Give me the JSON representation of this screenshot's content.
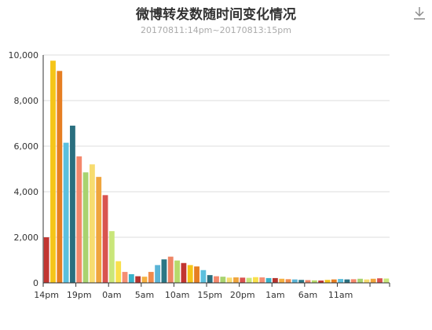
{
  "icons": {
    "toolbox": "download-icon"
  },
  "chart_data": {
    "type": "bar",
    "title": "微博转发数随时间变化情况",
    "subtitle": "20170811:14pm~20170813:15pm",
    "xlabel": "",
    "ylabel": "",
    "ylim": [
      0,
      10000
    ],
    "yticks": [
      0,
      2000,
      4000,
      6000,
      8000,
      10000
    ],
    "ytick_labels": [
      "0",
      "2,000",
      "4,000",
      "6,000",
      "8,000",
      "10,000"
    ],
    "grid": true,
    "legend": "none",
    "xtick_labels": [
      "14pm",
      "19pm",
      "0am",
      "5am",
      "10am",
      "15pm",
      "20pm",
      "1am",
      "6am",
      "11am"
    ],
    "xtick_every": 5,
    "values": [
      2000,
      9750,
      9300,
      6150,
      6900,
      5550,
      4850,
      5200,
      4650,
      3850,
      2270,
      950,
      480,
      380,
      290,
      270,
      480,
      780,
      1030,
      1150,
      980,
      870,
      780,
      720,
      560,
      340,
      290,
      270,
      230,
      240,
      230,
      220,
      250,
      240,
      210,
      210,
      180,
      160,
      150,
      130,
      120,
      110,
      100,
      130,
      150,
      170,
      150,
      160,
      180,
      150,
      180,
      200,
      190
    ],
    "palette": [
      "#c23531",
      "#f5c518",
      "#e67e22",
      "#5bc0de",
      "#2a6f7f",
      "#f4876b",
      "#a8d36f",
      "#f7dc6f",
      "#f0a53d",
      "#d9534f",
      "#c9e67a",
      "#f9e04b",
      "#f58e73",
      "#38b2c9",
      "#b5342f",
      "#f5b041",
      "#f08a4b",
      "#5ab4d6",
      "#2c7785",
      "#ee8565",
      "#b7da6b"
    ]
  }
}
